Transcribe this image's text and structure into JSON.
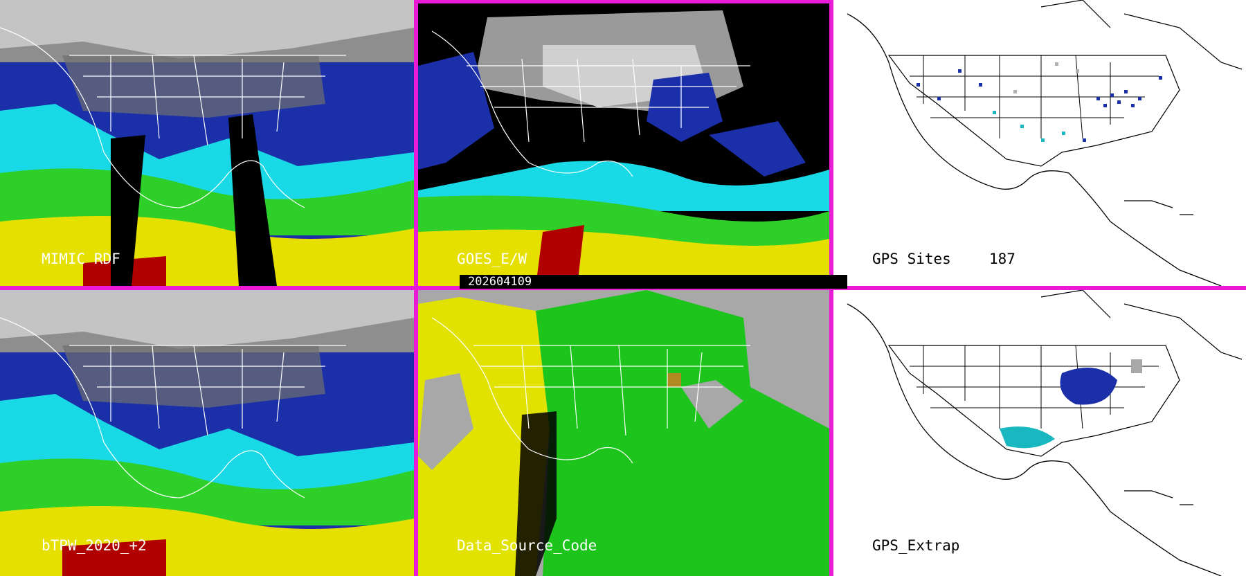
{
  "panels": {
    "mimic": {
      "label": "MIMIC RDF"
    },
    "goes": {
      "label": "GOES_E/W"
    },
    "gps_sites": {
      "label": "GPS Sites",
      "count": "187"
    },
    "btpw": {
      "label": "bTPW_2020_+2"
    },
    "dsc": {
      "label": "Data_Source_Code"
    },
    "gps_extrap": {
      "label": "GPS_Extrap"
    }
  },
  "timestamp": "202604109",
  "colors": {
    "frame": "#e91bd6",
    "tpw_low": "#7a7a7a",
    "tpw_blue": "#1a2fa8",
    "tpw_cyan": "#19d9e6",
    "tpw_green": "#2fcf2a",
    "tpw_yellow": "#e6e000",
    "tpw_red": "#b00000",
    "dsc_gray": "#a8a8a8",
    "dsc_yellow": "#e2e200",
    "dsc_green": "#1cc41c"
  }
}
